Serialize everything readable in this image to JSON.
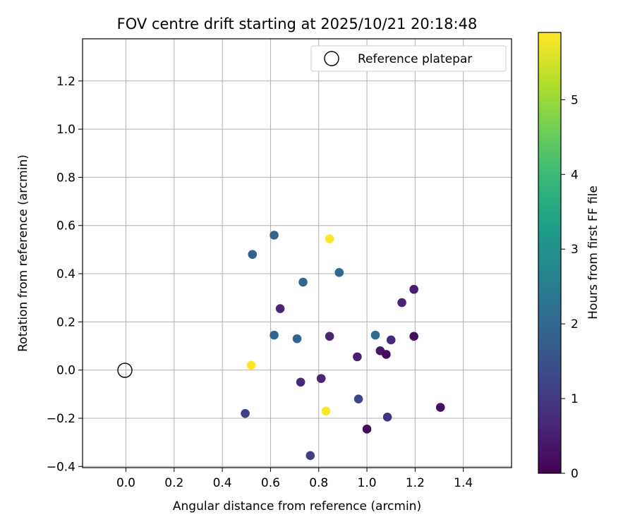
{
  "chart_data": {
    "type": "scatter",
    "title": "FOV centre drift starting at 2025/10/21 20:18:48",
    "xlabel": "Angular distance from reference (arcmin)",
    "ylabel": "Rotation from reference (arcmin)",
    "xlim": [
      -0.18,
      1.6
    ],
    "ylim": [
      -0.405,
      1.375
    ],
    "xticks": [
      0.0,
      0.2,
      0.4,
      0.6,
      0.8,
      1.0,
      1.2,
      1.4
    ],
    "xtick_labels": [
      "0.0",
      "0.2",
      "0.4",
      "0.6",
      "0.8",
      "1.0",
      "1.2",
      "1.4"
    ],
    "yticks": [
      -0.4,
      -0.2,
      0.0,
      0.2,
      0.4,
      0.6,
      0.8,
      1.0,
      1.2
    ],
    "ytick_labels": [
      "−0.4",
      "−0.2",
      "0.0",
      "0.2",
      "0.4",
      "0.6",
      "0.8",
      "1.0",
      "1.2"
    ],
    "grid": true,
    "legend": {
      "location": "upper right",
      "entries": [
        {
          "label": "Reference platepar",
          "marker": "open-circle"
        }
      ]
    },
    "reference_point": {
      "x": 0.0,
      "y": 0.0
    },
    "points": [
      {
        "x": 0.615,
        "y": 0.56,
        "hours": 1.9
      },
      {
        "x": 0.525,
        "y": 0.48,
        "hours": 1.8
      },
      {
        "x": 0.845,
        "y": 0.545,
        "hours": 5.9
      },
      {
        "x": 0.885,
        "y": 0.405,
        "hours": 2.0
      },
      {
        "x": 0.735,
        "y": 0.365,
        "hours": 2.0
      },
      {
        "x": 1.195,
        "y": 0.335,
        "hours": 0.5
      },
      {
        "x": 1.145,
        "y": 0.28,
        "hours": 0.6
      },
      {
        "x": 0.64,
        "y": 0.255,
        "hours": 0.6
      },
      {
        "x": 0.615,
        "y": 0.145,
        "hours": 1.9
      },
      {
        "x": 0.71,
        "y": 0.13,
        "hours": 1.9
      },
      {
        "x": 0.845,
        "y": 0.14,
        "hours": 0.6
      },
      {
        "x": 1.035,
        "y": 0.145,
        "hours": 2.1
      },
      {
        "x": 1.1,
        "y": 0.125,
        "hours": 0.7
      },
      {
        "x": 1.195,
        "y": 0.14,
        "hours": 0.25
      },
      {
        "x": 1.055,
        "y": 0.08,
        "hours": 0.35
      },
      {
        "x": 1.08,
        "y": 0.065,
        "hours": 0.2
      },
      {
        "x": 0.96,
        "y": 0.055,
        "hours": 0.5
      },
      {
        "x": 0.52,
        "y": 0.02,
        "hours": 5.9
      },
      {
        "x": 0.725,
        "y": -0.05,
        "hours": 0.65
      },
      {
        "x": 0.81,
        "y": -0.035,
        "hours": 0.6
      },
      {
        "x": 0.965,
        "y": -0.12,
        "hours": 1.3
      },
      {
        "x": 0.83,
        "y": -0.17,
        "hours": 5.9
      },
      {
        "x": 0.495,
        "y": -0.18,
        "hours": 1.1
      },
      {
        "x": 1.085,
        "y": -0.195,
        "hours": 0.85
      },
      {
        "x": 1.305,
        "y": -0.155,
        "hours": 0.25
      },
      {
        "x": 1.0,
        "y": -0.245,
        "hours": 0.15
      },
      {
        "x": 0.765,
        "y": -0.355,
        "hours": 1.1
      }
    ],
    "colorbar": {
      "label": "Hours from first FF file",
      "colormap": "viridis",
      "range": [
        0,
        5.9
      ],
      "ticks": [
        0,
        1,
        2,
        3,
        4,
        5
      ],
      "tick_labels": [
        "0",
        "1",
        "2",
        "3",
        "4",
        "5"
      ]
    }
  },
  "colors": {
    "viridis": [
      "#440154",
      "#482878",
      "#3e4989",
      "#31688e",
      "#26828e",
      "#1f9e89",
      "#35b779",
      "#6ece58",
      "#b5de2b",
      "#fde725"
    ],
    "grid": "#b0b0b0",
    "axes": "#000000"
  }
}
